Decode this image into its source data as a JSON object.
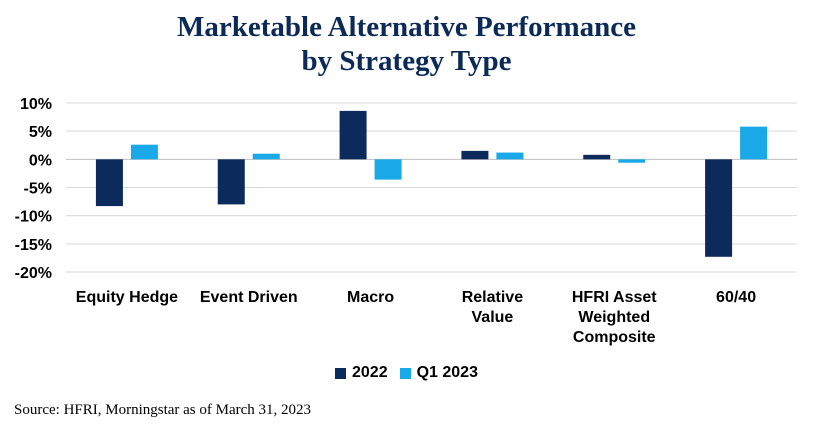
{
  "chart_data": {
    "type": "bar",
    "title_lines": [
      "Marketable Alternative Performance",
      "by Strategy Type"
    ],
    "categories": [
      [
        "Equity Hedge"
      ],
      [
        "Event Driven"
      ],
      [
        "Macro"
      ],
      [
        "Relative",
        "Value"
      ],
      [
        "HFRI Asset",
        "Weighted",
        "Composite"
      ],
      [
        "60/40"
      ]
    ],
    "series": [
      {
        "name": "2022",
        "color": "#0c2a5c",
        "values": [
          -8.3,
          -8.0,
          8.6,
          1.5,
          0.8,
          -17.3
        ]
      },
      {
        "name": "Q1 2023",
        "color": "#1aa9e8",
        "values": [
          2.6,
          1.0,
          -3.6,
          1.2,
          -0.6,
          5.8
        ]
      }
    ],
    "ylim": [
      -20,
      10
    ],
    "yticks": [
      10,
      5,
      0,
      -5,
      -10,
      -15,
      -20
    ],
    "ytick_labels": [
      "10%",
      "5%",
      "0%",
      "-5%",
      "-10%",
      "-15%",
      "-20%"
    ],
    "grid": true,
    "legend": "bottom"
  },
  "source": "Source: HFRI, Morningstar as of March 31, 2023"
}
